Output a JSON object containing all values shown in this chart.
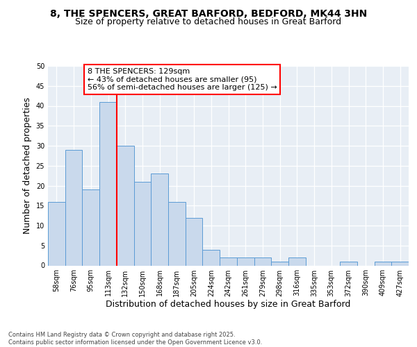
{
  "title_line1": "8, THE SPENCERS, GREAT BARFORD, BEDFORD, MK44 3HN",
  "title_line2": "Size of property relative to detached houses in Great Barford",
  "xlabel": "Distribution of detached houses by size in Great Barford",
  "ylabel": "Number of detached properties",
  "bin_labels": [
    "58sqm",
    "76sqm",
    "95sqm",
    "113sqm",
    "132sqm",
    "150sqm",
    "168sqm",
    "187sqm",
    "205sqm",
    "224sqm",
    "242sqm",
    "261sqm",
    "279sqm",
    "298sqm",
    "316sqm",
    "335sqm",
    "353sqm",
    "372sqm",
    "390sqm",
    "409sqm",
    "427sqm"
  ],
  "bar_heights": [
    16,
    29,
    19,
    41,
    30,
    21,
    23,
    16,
    12,
    4,
    2,
    2,
    2,
    1,
    2,
    0,
    0,
    1,
    0,
    1,
    1
  ],
  "bar_color": "#c9d9ec",
  "bar_edge_color": "#5b9bd5",
  "red_line_x": 3.5,
  "annotation_text": "8 THE SPENCERS: 129sqm\n← 43% of detached houses are smaller (95)\n56% of semi-detached houses are larger (125) →",
  "red_line_color": "red",
  "ylim": [
    0,
    50
  ],
  "yticks": [
    0,
    5,
    10,
    15,
    20,
    25,
    30,
    35,
    40,
    45,
    50
  ],
  "plot_background": "#e8eef5",
  "footer_text": "Contains HM Land Registry data © Crown copyright and database right 2025.\nContains public sector information licensed under the Open Government Licence v3.0.",
  "title_fontsize": 10,
  "subtitle_fontsize": 9,
  "axis_label_fontsize": 9,
  "tick_fontsize": 7,
  "annotation_fontsize": 8,
  "footer_fontsize": 6
}
